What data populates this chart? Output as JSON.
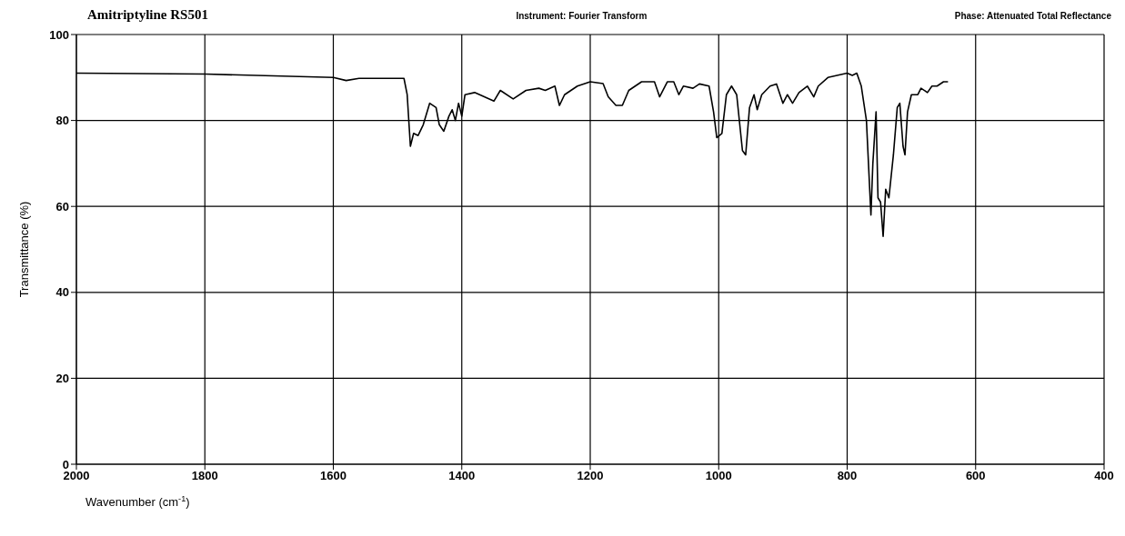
{
  "chart_data": {
    "type": "line",
    "title": "Amitriptyline RS501",
    "annotations": [
      "Instrument: Fourier Transform",
      "Phase:  Attenuated Total Reflectance"
    ],
    "xlabel": "Wavenumber (cm$^{-1}$)",
    "ylabel": "Transmittance (%)",
    "xlim": [
      2000,
      400
    ],
    "xticks": [
      2000,
      1800,
      1600,
      1400,
      1200,
      1000,
      800,
      600,
      400
    ],
    "ylim": [
      0,
      100
    ],
    "yticks": [
      0,
      20,
      40,
      60,
      80,
      100
    ],
    "grid": true,
    "legend": false,
    "marker": "none",
    "line_style": "solid",
    "series": [
      {
        "color": "#000000",
        "x": [
          2000,
          1800,
          1600,
          1580,
          1560,
          1490,
          1485,
          1480,
          1475,
          1468,
          1460,
          1450,
          1440,
          1435,
          1428,
          1420,
          1415,
          1410,
          1405,
          1400,
          1395,
          1380,
          1365,
          1350,
          1340,
          1320,
          1300,
          1280,
          1270,
          1255,
          1248,
          1240,
          1220,
          1200,
          1180,
          1172,
          1160,
          1150,
          1140,
          1120,
          1100,
          1092,
          1080,
          1070,
          1062,
          1055,
          1040,
          1030,
          1015,
          1008,
          1003,
          995,
          988,
          980,
          972,
          963,
          958,
          952,
          945,
          940,
          933,
          920,
          910,
          900,
          893,
          885,
          875,
          862,
          852,
          845,
          830,
          800,
          792,
          785,
          778,
          770,
          763,
          760,
          755,
          752,
          748,
          744,
          740,
          735,
          728,
          722,
          718,
          713,
          710,
          706,
          700,
          690,
          685,
          675,
          668,
          660,
          650,
          643
        ],
        "values": [
          91,
          90.8,
          90,
          89.3,
          89.8,
          89.8,
          86,
          74,
          77,
          76.5,
          79,
          84,
          83,
          79,
          77.5,
          81,
          82.5,
          80,
          84,
          81,
          86,
          86.5,
          85.5,
          84.5,
          87,
          85,
          87,
          87.5,
          87,
          88,
          83.5,
          86,
          88,
          89,
          88.6,
          85.5,
          83.5,
          83.5,
          87,
          89,
          89,
          85.5,
          89,
          89,
          86,
          88,
          87.5,
          88.5,
          88,
          82,
          76,
          77,
          86,
          88,
          86,
          73,
          72,
          83,
          86,
          82.5,
          86,
          88,
          88.5,
          84,
          86,
          84,
          86.5,
          88,
          85.5,
          88,
          90,
          91,
          90.5,
          91,
          88,
          80,
          58,
          70,
          82,
          62,
          61,
          53,
          64,
          62,
          72,
          83,
          84,
          74,
          72,
          82,
          86,
          86,
          87.5,
          86.5,
          88,
          88,
          89,
          89
        ]
      }
    ]
  }
}
